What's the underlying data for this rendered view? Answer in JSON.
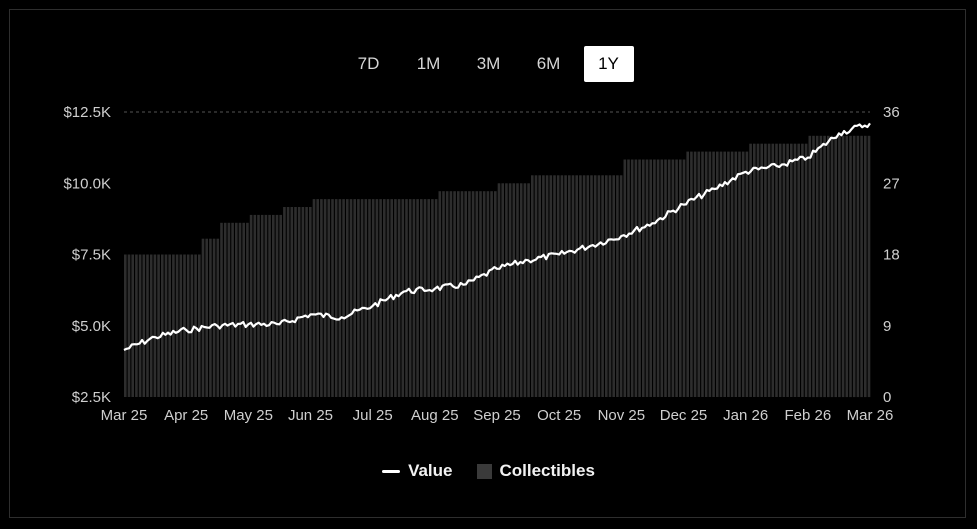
{
  "tabs": [
    {
      "label": "7D",
      "active": false
    },
    {
      "label": "1M",
      "active": false
    },
    {
      "label": "3M",
      "active": false
    },
    {
      "label": "6M",
      "active": false
    },
    {
      "label": "1Y",
      "active": true
    }
  ],
  "legend": {
    "value_label": "Value",
    "collectibles_label": "Collectibles"
  },
  "colors": {
    "background": "#000000",
    "line": "#ffffff",
    "bars": "#2d2d2d",
    "grid": "#555555",
    "text": "#cfcfcf"
  },
  "chart_data": {
    "type": "line+bar",
    "x_ticks": [
      "Mar 25",
      "Apr 25",
      "May 25",
      "Jun 25",
      "Jul 25",
      "Aug 25",
      "Sep 25",
      "Oct 25",
      "Nov 25",
      "Dec 25",
      "Jan 26",
      "Feb 26",
      "Mar 26"
    ],
    "y_left": {
      "ticks": [
        "$2.5K",
        "$5.0K",
        "$7.5K",
        "$10.0K",
        "$12.5K"
      ],
      "range": [
        2500,
        12500
      ]
    },
    "y_right": {
      "ticks": [
        "0",
        "9",
        "18",
        "27",
        "36"
      ],
      "range": [
        0,
        36
      ]
    },
    "grid": "dashed line at top only",
    "legend_position": "bottom-center",
    "series": [
      {
        "name": "Value",
        "axis": "left",
        "kind": "line",
        "x": [
          "Mar 25",
          "Mar 25.5",
          "Apr 25",
          "Apr 25.5",
          "May 25",
          "May 25.5",
          "Jun 25",
          "Jun 25.5",
          "Jul 25",
          "Jul 25.5",
          "Aug 25",
          "Aug 25.5",
          "Sep 25",
          "Sep 25.5",
          "Oct 25",
          "Oct 25.5",
          "Nov 25",
          "Nov 25.5",
          "Dec 25",
          "Dec 25.5",
          "Jan 26",
          "Jan 26.5",
          "Feb 26",
          "Feb 26.5",
          "Mar 26"
        ],
        "values": [
          4150,
          4600,
          4850,
          5000,
          5050,
          5050,
          5400,
          5300,
          5700,
          6200,
          6300,
          6450,
          7000,
          7300,
          7500,
          7800,
          8150,
          8600,
          9250,
          9800,
          10400,
          10600,
          10900,
          11750,
          12100
        ]
      },
      {
        "name": "Collectibles",
        "axis": "right",
        "kind": "bar-step",
        "x": [
          "Mar 25",
          "Apr 25",
          "Apr 25.2",
          "Apr 25.5",
          "May 25",
          "May 25.5",
          "Jun 25",
          "Jul 25",
          "Aug 25",
          "Sep 25",
          "Sep 25.5",
          "Oct 25",
          "Nov 25",
          "Dec 25",
          "Jan 26",
          "Feb 26",
          "Mar 26"
        ],
        "values": [
          18,
          18,
          20,
          22,
          23,
          24,
          25,
          25,
          26,
          27,
          28,
          28,
          30,
          31,
          32,
          33,
          34
        ]
      }
    ]
  }
}
